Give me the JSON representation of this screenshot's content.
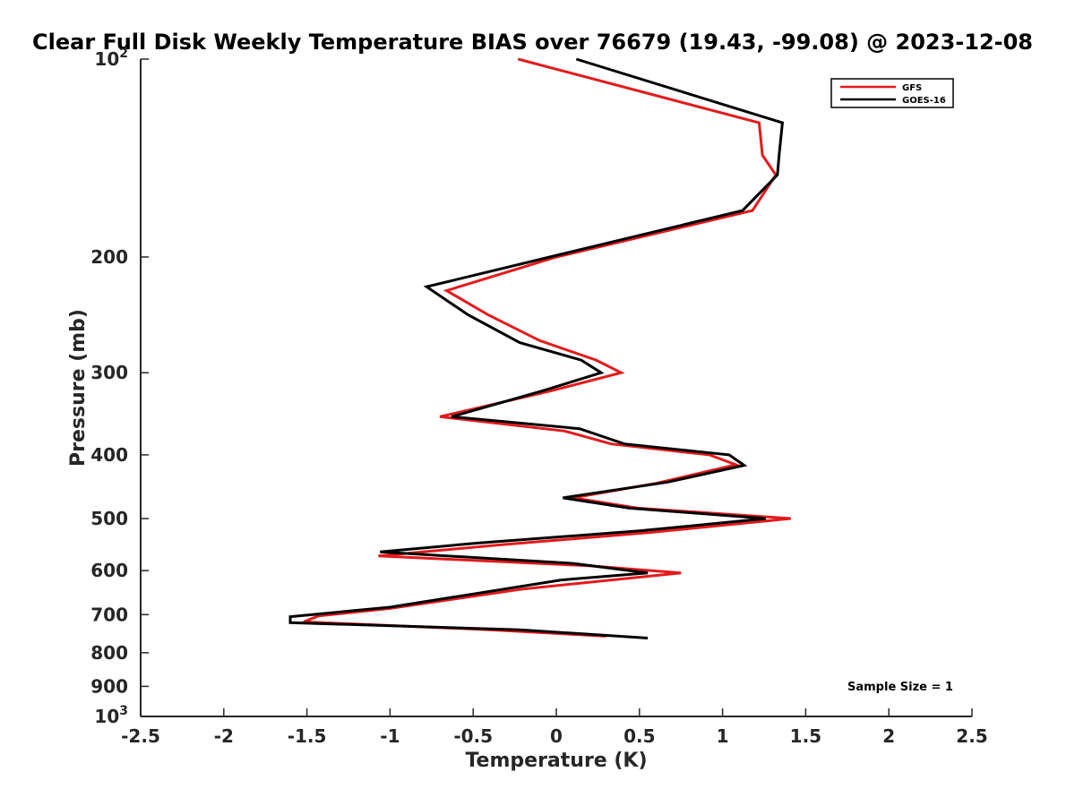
{
  "chart_data": {
    "type": "line",
    "title": "Clear Full Disk Weekly Temperature BIAS over 76679 (19.43, -99.08) @ 2023-12-08",
    "xlabel": "Temperature (K)",
    "ylabel": "Pressure (mb)",
    "xlim": [
      -2.5,
      2.5
    ],
    "ylim": [
      100,
      1000
    ],
    "y_scale": "log",
    "y_reversed": true,
    "x_ticks": [
      "-2.5",
      "-2",
      "-1.5",
      "-1",
      "-0.5",
      "0",
      "0.5",
      "1",
      "1.5",
      "2",
      "2.5"
    ],
    "y_ticks": [
      {
        "value": 100,
        "base": "10",
        "exp": "2"
      },
      {
        "value": 200,
        "label": "200"
      },
      {
        "value": 300,
        "label": "300"
      },
      {
        "value": 400,
        "label": "400"
      },
      {
        "value": 500,
        "label": "500"
      },
      {
        "value": 600,
        "label": "600"
      },
      {
        "value": 700,
        "label": "700"
      },
      {
        "value": 800,
        "label": "800"
      },
      {
        "value": 900,
        "label": "900"
      },
      {
        "value": 1000,
        "base": "10",
        "exp": "3"
      }
    ],
    "legend_position": "top-right",
    "annotation": "Sample Size = 1",
    "series": [
      {
        "name": "GFS",
        "color": "#e31a1c",
        "points": [
          [
            -0.23,
            100
          ],
          [
            1.22,
            125
          ],
          [
            1.24,
            140
          ],
          [
            1.32,
            150
          ],
          [
            1.18,
            170
          ],
          [
            0.0,
            200
          ],
          [
            -0.66,
            225
          ],
          [
            -0.41,
            245
          ],
          [
            -0.1,
            268
          ],
          [
            0.24,
            287
          ],
          [
            0.39,
            300
          ],
          [
            -0.04,
            320
          ],
          [
            -0.7,
            350
          ],
          [
            0.05,
            368
          ],
          [
            0.33,
            385
          ],
          [
            0.92,
            400
          ],
          [
            1.08,
            414
          ],
          [
            0.6,
            442
          ],
          [
            0.1,
            465
          ],
          [
            0.49,
            482
          ],
          [
            1.41,
            500
          ],
          [
            0.56,
            525
          ],
          [
            -0.33,
            548
          ],
          [
            -1.07,
            570
          ],
          [
            0.2,
            590
          ],
          [
            0.75,
            605
          ],
          [
            -0.2,
            640
          ],
          [
            -1.0,
            685
          ],
          [
            -1.43,
            703
          ],
          [
            -1.52,
            718
          ],
          [
            -0.4,
            738
          ],
          [
            0.3,
            755
          ]
        ]
      },
      {
        "name": "GOES-16",
        "color": "#000000",
        "points": [
          [
            0.12,
            100
          ],
          [
            1.36,
            125
          ],
          [
            1.34,
            140
          ],
          [
            1.33,
            150
          ],
          [
            1.12,
            170
          ],
          [
            -0.04,
            200
          ],
          [
            -0.78,
            222
          ],
          [
            -0.53,
            245
          ],
          [
            -0.22,
            270
          ],
          [
            0.15,
            287
          ],
          [
            0.27,
            300
          ],
          [
            -0.09,
            320
          ],
          [
            -0.63,
            350
          ],
          [
            0.14,
            365
          ],
          [
            0.41,
            385
          ],
          [
            1.04,
            400
          ],
          [
            1.13,
            415
          ],
          [
            0.67,
            440
          ],
          [
            0.04,
            465
          ],
          [
            0.44,
            482
          ],
          [
            1.26,
            500
          ],
          [
            0.5,
            522
          ],
          [
            -0.48,
            545
          ],
          [
            -1.06,
            562
          ],
          [
            0.1,
            585
          ],
          [
            0.55,
            605
          ],
          [
            0.03,
            620
          ],
          [
            -1.0,
            682
          ],
          [
            -1.6,
            705
          ],
          [
            -1.6,
            720
          ],
          [
            -0.22,
            738
          ],
          [
            0.55,
            760
          ]
        ]
      }
    ]
  }
}
